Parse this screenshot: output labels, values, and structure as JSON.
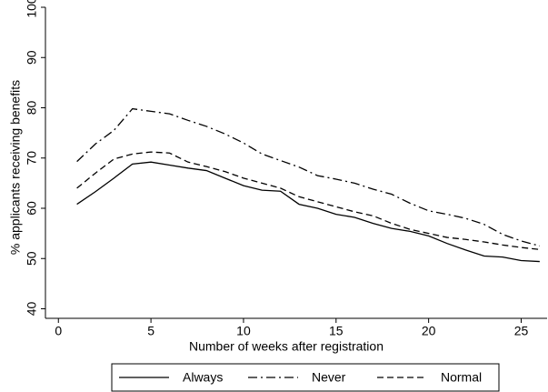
{
  "chart_data": {
    "type": "line",
    "x_label": "Number of weeks after registration",
    "y_label": "% applicants receiving benefits",
    "x": [
      1,
      2,
      3,
      4,
      5,
      6,
      7,
      8,
      9,
      10,
      11,
      12,
      13,
      14,
      15,
      16,
      17,
      18,
      19,
      20,
      21,
      22,
      23,
      24,
      25,
      26
    ],
    "series": [
      {
        "name": "Always",
        "color": "#000000",
        "dash": "solid",
        "values": [
          60.8,
          63.3,
          66,
          68.8,
          69.2,
          68.6,
          68,
          67.5,
          66,
          64.5,
          63.6,
          63.4,
          60.8,
          60,
          58.8,
          58.2,
          57,
          56,
          55.4,
          54.5,
          53,
          51.7,
          50.5,
          50.3,
          49.6,
          49.4
        ]
      },
      {
        "name": "Never",
        "color": "#000000",
        "dash": "dashdot",
        "values": [
          69.3,
          72.8,
          75.5,
          79.8,
          79.3,
          78.8,
          77.5,
          76.3,
          74.8,
          73,
          70.8,
          69.5,
          68.2,
          66.5,
          65.8,
          65,
          63.8,
          62.8,
          61,
          59.5,
          58.8,
          58,
          56.8,
          54.8,
          53.5,
          52.5
        ]
      },
      {
        "name": "Normal",
        "color": "#000000",
        "dash": "dash",
        "values": [
          64,
          67,
          69.8,
          70.8,
          71.2,
          71,
          69.2,
          68.3,
          67.3,
          66,
          65,
          64,
          62.3,
          61.3,
          60.3,
          59.3,
          58.5,
          57,
          55.8,
          55,
          54.2,
          53.8,
          53.3,
          52.7,
          52.2,
          51.8
        ]
      }
    ],
    "xlim": [
      -0.7,
      26.4
    ],
    "xticks": [
      0,
      5,
      10,
      15,
      20,
      25
    ],
    "ylim": [
      38.1,
      100
    ],
    "yticks": [
      40,
      50,
      60,
      70,
      80,
      90,
      100
    ],
    "grid": false,
    "legend": "bottom"
  }
}
